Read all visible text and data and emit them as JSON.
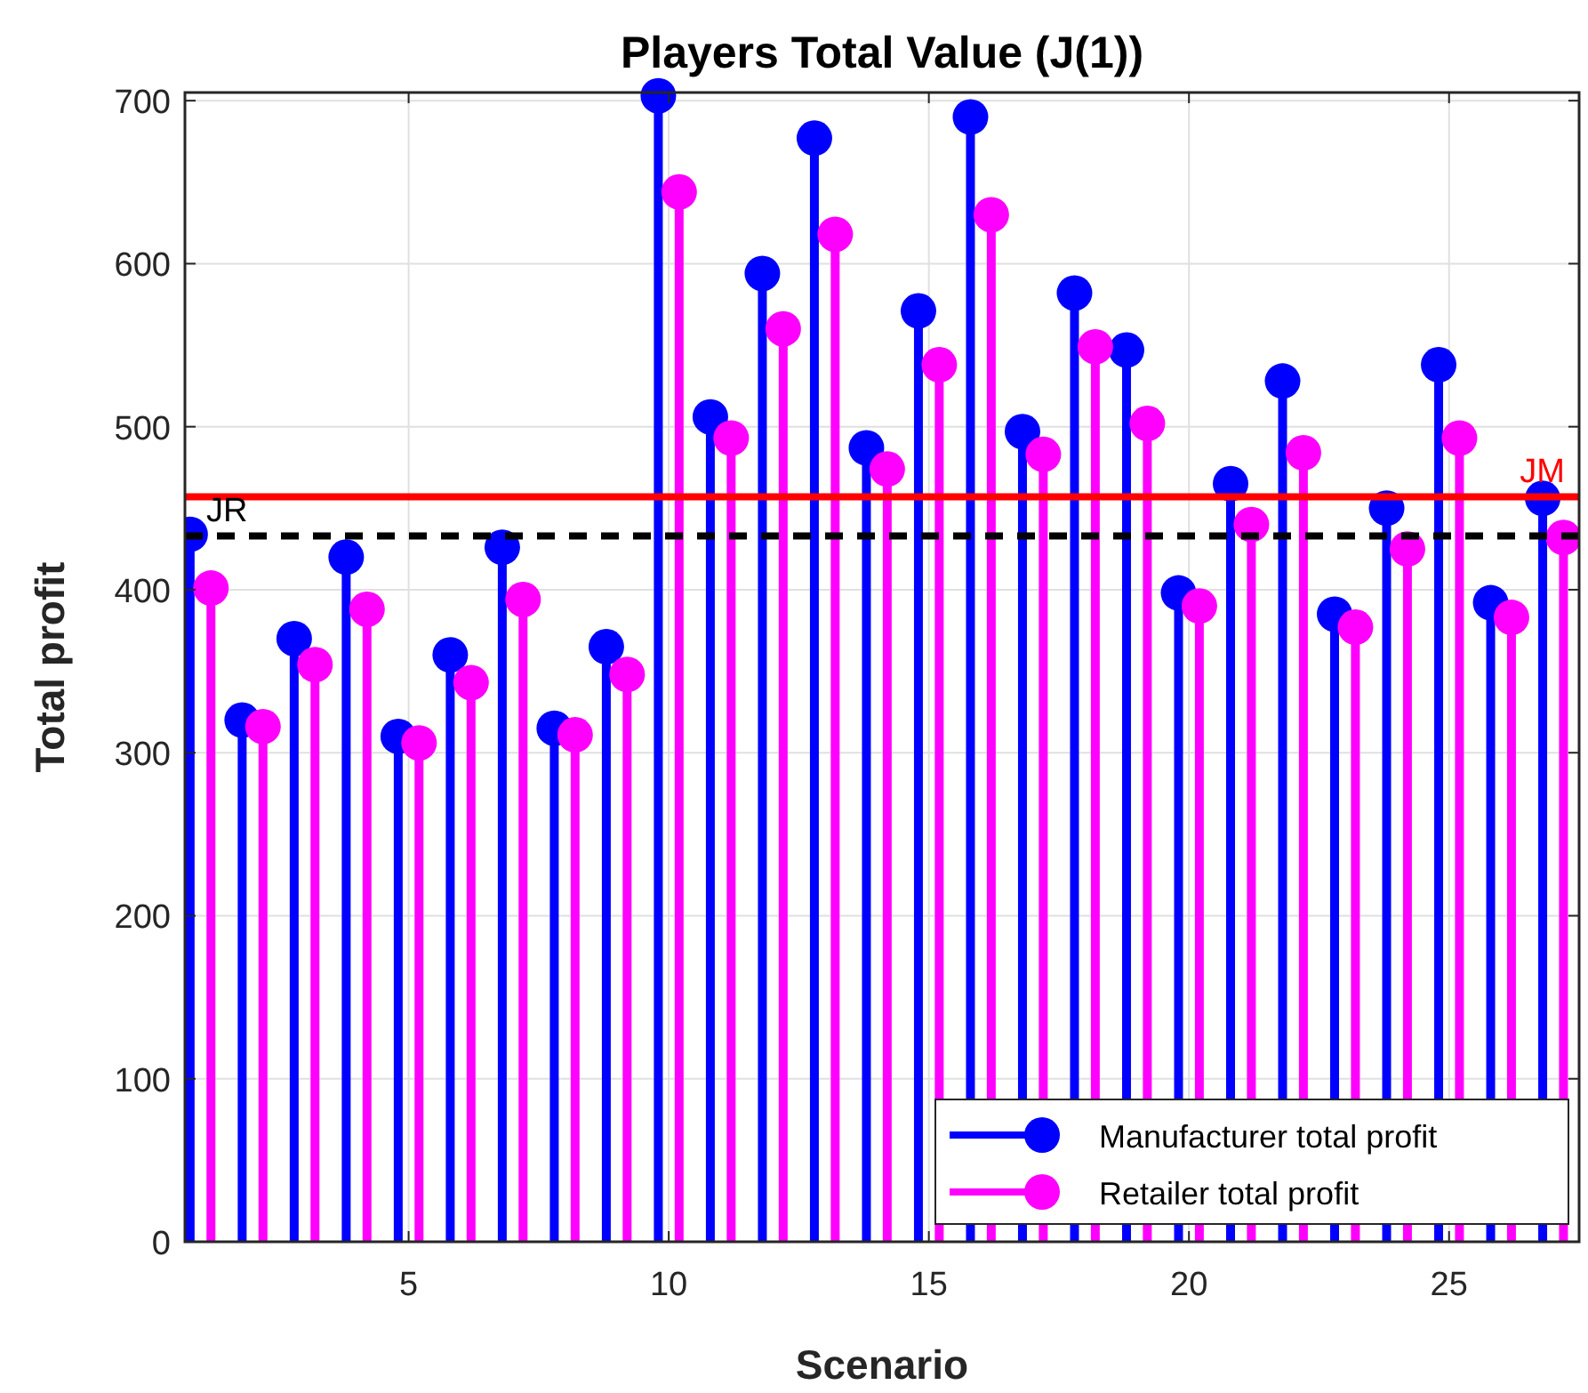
{
  "chart_data": {
    "type": "lollipop",
    "title": "Players Total Value (J(1))",
    "xlabel": "Scenario",
    "ylabel": "Total profit",
    "xlim": [
      0.7,
      27.5
    ],
    "xticks": [
      5,
      10,
      15,
      20,
      25
    ],
    "ylim": [
      0,
      705
    ],
    "yticks": [
      0,
      100,
      200,
      300,
      400,
      500,
      600,
      700
    ],
    "grid": true,
    "legend": "bottom right",
    "marker": "circle",
    "series": [
      {
        "name": "Manufacturer total profit",
        "color": "#0000ff",
        "x": [
          0.8,
          1.8,
          2.8,
          3.8,
          4.8,
          5.8,
          6.8,
          7.8,
          8.8,
          9.8,
          10.8,
          11.8,
          12.8,
          13.8,
          14.8,
          15.8,
          16.8,
          17.8,
          18.8,
          19.8,
          20.8,
          21.8,
          22.8,
          23.8,
          24.8,
          25.8,
          26.8
        ],
        "values": [
          434,
          320,
          370,
          420,
          310,
          360,
          426,
          315,
          365,
          703,
          506,
          594,
          677,
          487,
          571,
          690,
          497,
          582,
          547,
          398,
          465,
          528,
          385,
          450,
          538,
          392,
          456
        ]
      },
      {
        "name": "Retailer total profit",
        "color": "#ff00ff",
        "x": [
          1.2,
          2.2,
          3.2,
          4.2,
          5.2,
          6.2,
          7.2,
          8.2,
          9.2,
          10.2,
          11.2,
          12.2,
          13.2,
          14.2,
          15.2,
          16.2,
          17.2,
          18.2,
          19.2,
          20.2,
          21.2,
          22.2,
          23.2,
          24.2,
          25.2,
          26.2,
          27.2
        ],
        "values": [
          401,
          316,
          354,
          388,
          306,
          343,
          394,
          311,
          348,
          644,
          493,
          560,
          618,
          474,
          538,
          630,
          483,
          549,
          502,
          390,
          440,
          484,
          377,
          425,
          493,
          383,
          432
        ]
      }
    ],
    "ref_lines": [
      {
        "axis": "y",
        "value": 457,
        "label": "JM",
        "color": "#ff0000",
        "line_style": "solid"
      },
      {
        "axis": "y",
        "value": 433,
        "label": "JR",
        "color": "#000000",
        "line_style": "dashed"
      }
    ]
  }
}
